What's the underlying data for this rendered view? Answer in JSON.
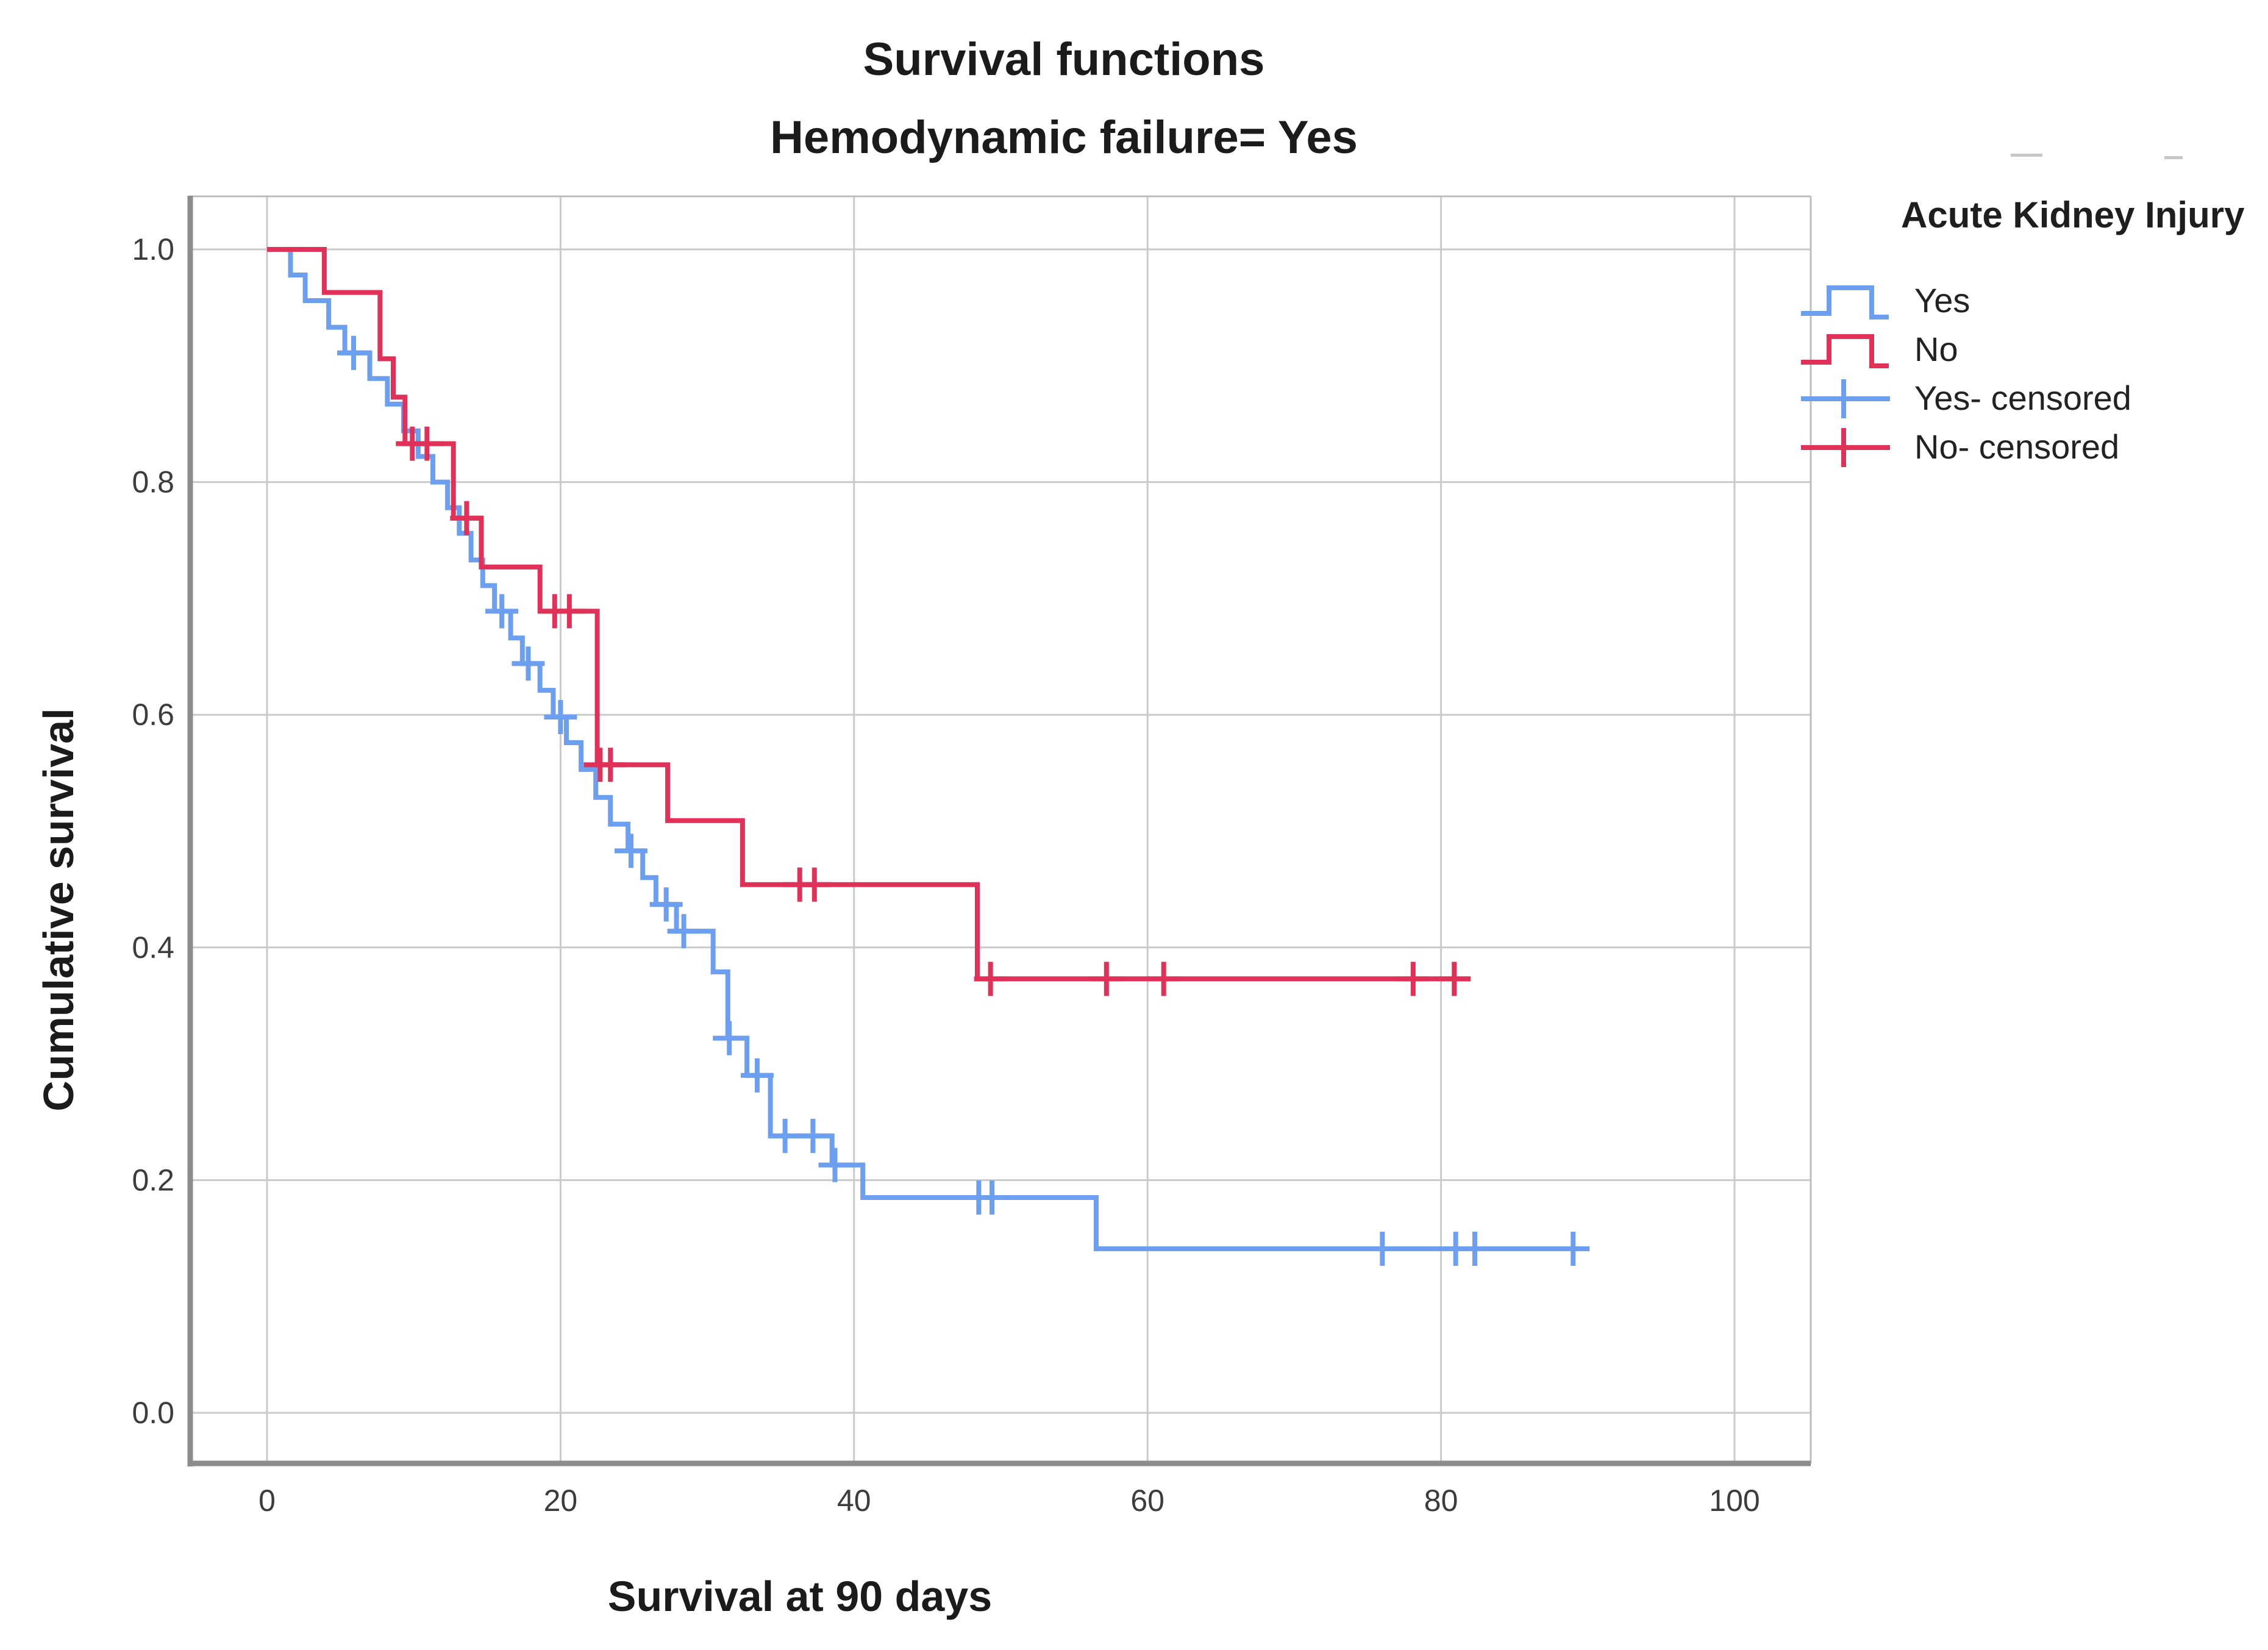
{
  "page": {
    "background": "#ffffff"
  },
  "chart": {
    "title_line1": "Survival functions",
    "title_line2": "Hemodynamic failure= Yes",
    "x_axis": {
      "title": "Survival at 90 days",
      "ticks": [
        0,
        20,
        40,
        60,
        80,
        100
      ]
    },
    "y_axis": {
      "title": "Cumulative survival",
      "tick_labels": [
        "1.0",
        "0.8",
        "0.6",
        "0.4",
        "0.2",
        "0.0"
      ]
    }
  },
  "legend": {
    "title": "Acute Kidney Injury",
    "items": [
      {
        "label": "Yes",
        "symbol": "step-line",
        "color": "#6C9FF0"
      },
      {
        "label": "No",
        "symbol": "step-line",
        "color": "#E03258"
      },
      {
        "label": "Yes- censored",
        "symbol": "plus-line",
        "color": "#6C9FF0"
      },
      {
        "label": "No- censored",
        "symbol": "plus-line",
        "color": "#E03258"
      }
    ]
  },
  "chart_data": {
    "type": "line",
    "subtype": "kaplan-meier-step",
    "title": "Survival functions",
    "subtitle": "Hemodynamic failure= Yes",
    "xlabel": "Survival at 90 days",
    "ylabel": "Cumulative survival",
    "xlim": [
      -5.2,
      105.2
    ],
    "ylim": [
      -0.045,
      1.045
    ],
    "x_ticks": [
      0,
      20,
      40,
      60,
      80,
      100
    ],
    "y_ticks": [
      0.0,
      0.2,
      0.4,
      0.6,
      0.8,
      1.0
    ],
    "grid": true,
    "legend_title": "Acute Kidney Injury",
    "legend_position": "right",
    "series": [
      {
        "name": "Yes",
        "color": "#6C9FF0",
        "start": [
          0,
          1.0
        ],
        "steps": [
          [
            1.6,
            0.978
          ],
          [
            2.6,
            0.956
          ],
          [
            4.2,
            0.933
          ],
          [
            5.3,
            0.911
          ],
          [
            7.0,
            0.889
          ],
          [
            8.2,
            0.867
          ],
          [
            9.3,
            0.844
          ],
          [
            10.3,
            0.822
          ],
          [
            11.3,
            0.8
          ],
          [
            12.3,
            0.778
          ],
          [
            13.1,
            0.756
          ],
          [
            13.9,
            0.733
          ],
          [
            14.7,
            0.711
          ],
          [
            15.5,
            0.689
          ],
          [
            16.6,
            0.666
          ],
          [
            17.4,
            0.644
          ],
          [
            18.6,
            0.621
          ],
          [
            19.5,
            0.598
          ],
          [
            20.4,
            0.576
          ],
          [
            21.4,
            0.553
          ],
          [
            22.4,
            0.529
          ],
          [
            23.4,
            0.506
          ],
          [
            24.6,
            0.483
          ],
          [
            25.6,
            0.46
          ],
          [
            26.5,
            0.437
          ],
          [
            27.9,
            0.414
          ],
          [
            30.4,
            0.379
          ],
          [
            31.4,
            0.322
          ],
          [
            32.7,
            0.29
          ],
          [
            34.3,
            0.238
          ],
          [
            38.5,
            0.213
          ],
          [
            40.6,
            0.185
          ],
          [
            56.5,
            0.141
          ]
        ],
        "end_x": 90,
        "censored_x": [
          5.9,
          16.0,
          17.8,
          20.0,
          24.8,
          27.2,
          28.4,
          31.5,
          33.4,
          35.3,
          37.2,
          38.7,
          48.5,
          49.4,
          76.0,
          81.0,
          82.3,
          89.0
        ]
      },
      {
        "name": "No",
        "color": "#E03258",
        "start": [
          0,
          1.0
        ],
        "steps": [
          [
            3.9,
            0.963
          ],
          [
            7.7,
            0.906
          ],
          [
            8.6,
            0.873
          ],
          [
            9.4,
            0.833
          ],
          [
            12.7,
            0.769
          ],
          [
            14.6,
            0.727
          ],
          [
            18.6,
            0.689
          ],
          [
            22.5,
            0.557
          ],
          [
            27.3,
            0.509
          ],
          [
            32.4,
            0.454
          ],
          [
            48.4,
            0.373
          ]
        ],
        "end_x": 82,
        "censored_x": [
          9.9,
          10.9,
          13.6,
          19.6,
          20.6,
          22.7,
          23.4,
          36.3,
          37.3,
          49.3,
          57.2,
          61.1,
          78.1,
          80.9
        ]
      }
    ]
  }
}
